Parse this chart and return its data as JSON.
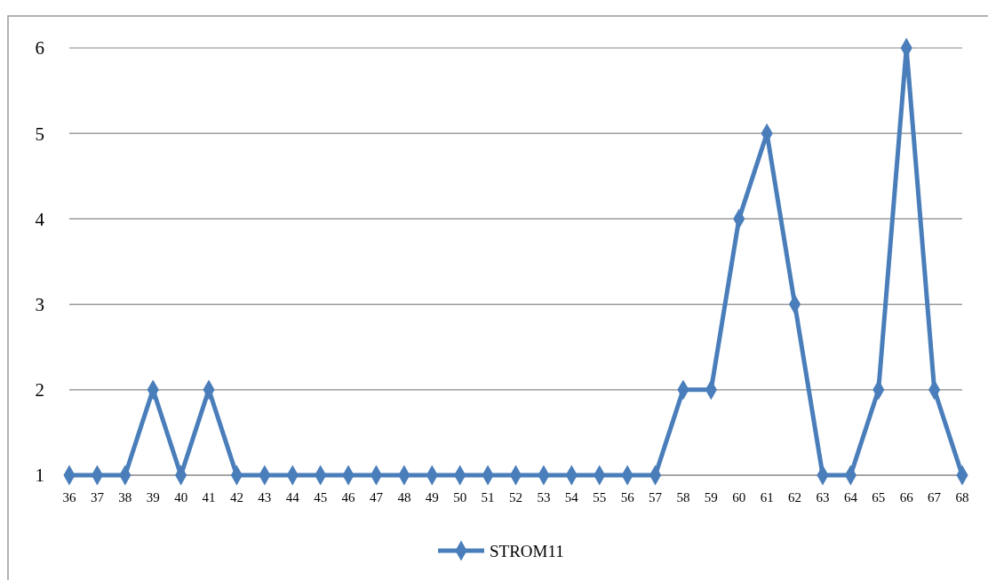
{
  "chart_data": {
    "type": "line",
    "categories": [
      "36",
      "37",
      "38",
      "39",
      "40",
      "41",
      "42",
      "43",
      "44",
      "45",
      "46",
      "47",
      "48",
      "49",
      "50",
      "51",
      "52",
      "53",
      "54",
      "55",
      "56",
      "57",
      "58",
      "59",
      "60",
      "61",
      "62",
      "63",
      "64",
      "65",
      "66",
      "67",
      "68"
    ],
    "series": [
      {
        "name": "STROM11",
        "color": "#4a7ebb",
        "values": [
          1,
          1,
          1,
          2,
          1,
          2,
          1,
          1,
          1,
          1,
          1,
          1,
          1,
          1,
          1,
          1,
          1,
          1,
          1,
          1,
          1,
          1,
          2,
          2,
          4,
          5,
          3,
          1,
          1,
          2,
          6,
          2,
          1
        ]
      }
    ],
    "ylim": [
      1,
      6
    ],
    "yticks": [
      1,
      2,
      3,
      4,
      5,
      6
    ],
    "grid": "y",
    "legend": "bottom",
    "marker": "diamond",
    "line_style": "solid"
  }
}
